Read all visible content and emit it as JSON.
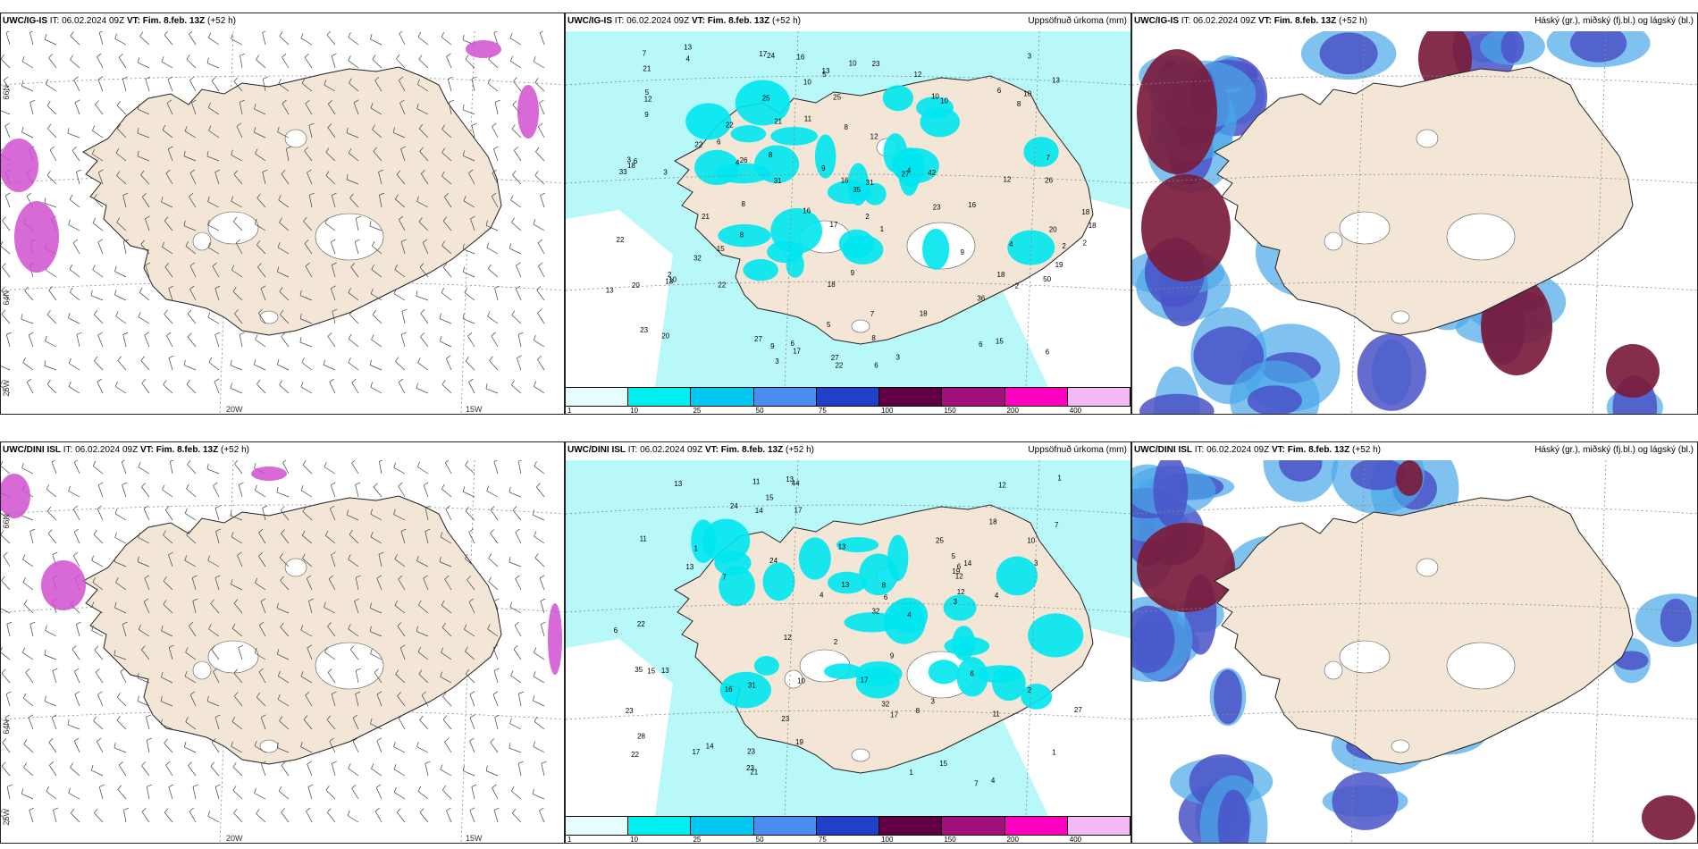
{
  "rows": [
    {
      "model": "UWC/IG-IS",
      "panels": [
        {
          "title_model": "UWC/IG-IS",
          "it_label": "IT:",
          "it": "06.02.2024 09Z",
          "vt_label": "VT:",
          "vt": "Fim. 8.feb. 13Z",
          "lead": "(+52 h)",
          "subtitle": ""
        },
        {
          "title_model": "UWC/IG-IS",
          "it_label": "IT:",
          "it": "06.02.2024 09Z",
          "vt_label": "VT:",
          "vt": "Fim. 8.feb. 13Z",
          "lead": "(+52 h)",
          "subtitle": "Uppsöfnuð úrkoma (mm)"
        },
        {
          "title_model": "UWC/IG-IS",
          "it_label": "IT:",
          "it": "06.02.2024 09Z",
          "vt_label": "VT:",
          "vt": "Fim. 8.feb. 13Z",
          "lead": "(+52 h)",
          "subtitle": "Háský (gr.), miðský (fj.bl.) og lágský (bl.)"
        }
      ]
    },
    {
      "model": "UWC/DINI ISL",
      "panels": [
        {
          "title_model": "UWC/DINI ISL",
          "it_label": "IT:",
          "it": "06.02.2024 09Z",
          "vt_label": "VT:",
          "vt": "Fim. 8.feb. 13Z",
          "lead": "(+52 h)",
          "subtitle": ""
        },
        {
          "title_model": "UWC/DINI ISL",
          "it_label": "IT:",
          "it": "06.02.2024 09Z",
          "vt_label": "VT:",
          "vt": "Fim. 8.feb. 13Z",
          "lead": "(+52 h)",
          "subtitle": "Uppsöfnuð úrkoma (mm)"
        },
        {
          "title_model": "UWC/DINI ISL",
          "it_label": "IT:",
          "it": "06.02.2024 09Z",
          "vt_label": "VT:",
          "vt": "Fim. 8.feb. 13Z",
          "lead": "(+52 h)",
          "subtitle": "Háský (gr.), miðský (fj.bl.) og lágský (bl.)"
        }
      ]
    }
  ],
  "map_labels": {
    "lon_20": "20W",
    "lon_15": "15W",
    "lat_66": "66N",
    "lat_64": "64N",
    "lon_25": "25W"
  },
  "precip_colorbar": {
    "labels": [
      "1",
      "10",
      "25",
      "50",
      "75",
      "100",
      "150",
      "200",
      "400"
    ],
    "colors": [
      "#e8fdfd",
      "#00f0f0",
      "#00c8f0",
      "#4a8cf0",
      "#2040c8",
      "#600040",
      "#a0107a",
      "#ff00c0",
      "#f4b8f4"
    ]
  },
  "row0_precip_values": [
    "4",
    "7",
    "7",
    "10",
    "10",
    "8",
    "6",
    "6",
    "6",
    "13",
    "12",
    "10",
    "16",
    "13",
    "18",
    "9",
    "9",
    "4",
    "23",
    "21",
    "22",
    "22",
    "9",
    "8",
    "31",
    "20",
    "23",
    "19",
    "27",
    "26",
    "9",
    "15",
    "6",
    "18",
    "13",
    "18",
    "42",
    "36",
    "35",
    "50",
    "18",
    "22",
    "10",
    "10",
    "21",
    "17",
    "18",
    "33",
    "32",
    "22",
    "27",
    "27",
    "8",
    "31",
    "20",
    "12",
    "8",
    "16",
    "24",
    "20",
    "17",
    "13",
    "11",
    "16",
    "13",
    "3",
    "12",
    "21",
    "16",
    "15",
    "6",
    "17",
    "12",
    "9",
    "10",
    "3",
    "26",
    "25",
    "2",
    "18",
    "8",
    "2",
    "2",
    "8",
    "1",
    "3",
    "2",
    "2",
    "4",
    "5",
    "6",
    "6",
    "5",
    "5",
    "7",
    "22",
    "3",
    "3",
    "4",
    "23",
    "25"
  ],
  "row1_precip_values": [
    "3",
    "4",
    "4",
    "6",
    "6",
    "5",
    "6",
    "7",
    "4",
    "13",
    "12",
    "17",
    "21",
    "8",
    "7",
    "9",
    "32",
    "31",
    "23",
    "35",
    "25",
    "18",
    "13",
    "19",
    "23",
    "15",
    "14",
    "44",
    "24",
    "22",
    "13",
    "11",
    "11",
    "22",
    "32",
    "28",
    "17",
    "12",
    "10",
    "13",
    "23",
    "13",
    "15",
    "27",
    "24",
    "14",
    "19",
    "8",
    "12",
    "12",
    "17",
    "14",
    "16",
    "17",
    "13",
    "15",
    "11",
    "10",
    "23",
    "3",
    "3",
    "2",
    "1",
    "1",
    "1",
    "2",
    "1",
    "4",
    "7",
    "6"
  ],
  "colors": {
    "land": "#f3e6d6",
    "precip_bg": "#b8f8f8",
    "cloud_high": "#7a1c3c",
    "cloud_mid": "#4a52c8",
    "cloud_low": "#4aa8e8",
    "snow_pink": "#d050d0"
  }
}
